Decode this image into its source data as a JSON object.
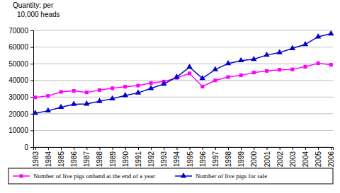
{
  "chart_data": {
    "type": "line",
    "y_label": "Quantity: per\n10,000 heads",
    "categories": [
      "1983",
      "1984",
      "1985",
      "1986",
      "1987",
      "1988",
      "1989",
      "1990",
      "1991",
      "1992",
      "1993",
      "1994",
      "1995",
      "1996",
      "1997",
      "1998",
      "1999",
      "2000",
      "2001",
      "2002",
      "2003",
      "2004",
      "2005",
      "2006"
    ],
    "series": [
      {
        "name": "Number of live pigs onhand at the end of a year",
        "color": "#ff00ff",
        "marker": "square",
        "line_style": "solid",
        "values": [
          29800,
          30700,
          33100,
          33700,
          32800,
          34200,
          35300,
          36200,
          36900,
          38400,
          39300,
          41500,
          44200,
          36300,
          40000,
          42000,
          43100,
          44700,
          45700,
          46400,
          46600,
          48200,
          50300,
          49400
        ]
      },
      {
        "name": "Number of live pigs for sale",
        "color": "#0000cc",
        "marker": "triangle",
        "line_style": "solid",
        "values": [
          20300,
          21800,
          23900,
          25700,
          25900,
          27500,
          29000,
          31000,
          32500,
          35200,
          37800,
          42000,
          48000,
          41200,
          46500,
          50100,
          51900,
          52700,
          55200,
          56700,
          59200,
          61600,
          66200,
          68000
        ]
      }
    ],
    "ylim": [
      0,
      70000
    ],
    "yticks": [
      0,
      10000,
      20000,
      30000,
      40000,
      50000,
      60000,
      70000
    ],
    "grid": true,
    "legend": "bottom"
  }
}
